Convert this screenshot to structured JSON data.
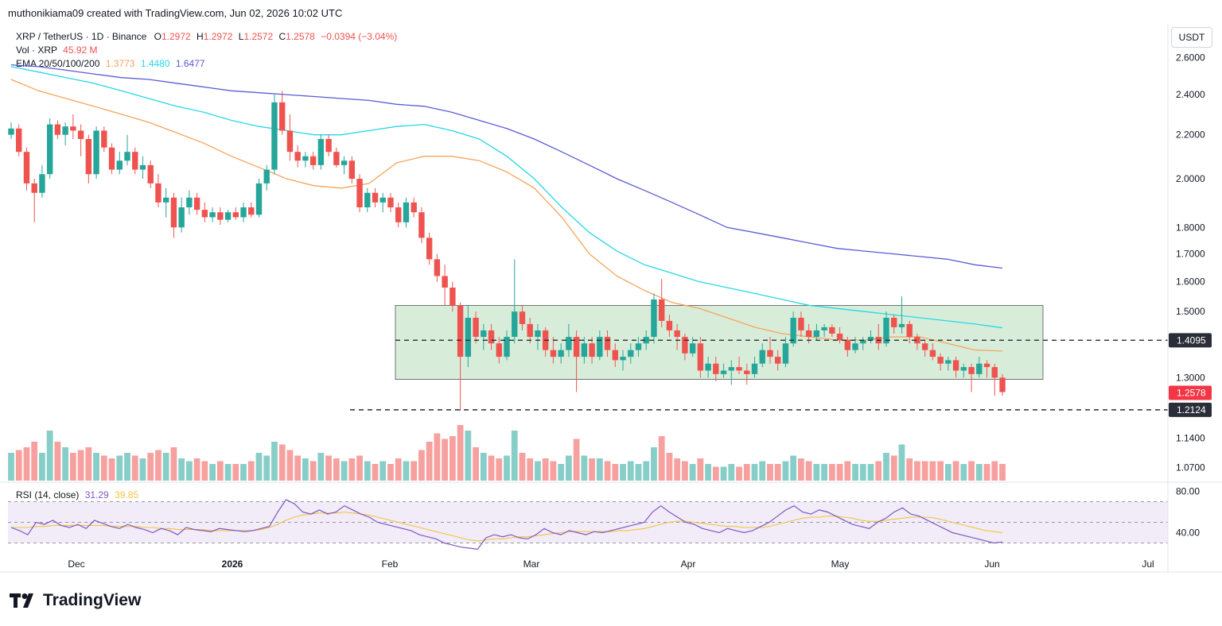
{
  "header": {
    "caption": "muthonikiama09 created with TradingView.com, Jun 02, 2026 10:02 UTC"
  },
  "legend": {
    "symbol": "XRP / TetherUS · 1D · Binance",
    "o_label": "O",
    "o_value": "1.2972",
    "h_label": "H",
    "h_value": "1.2972",
    "l_label": "L",
    "l_value": "1.2572",
    "c_label": "C",
    "c_value": "1.2578",
    "change": "−0.0394 (−3.04%)",
    "vol_label": "Vol · XRP",
    "vol_value": "45.92 M",
    "ema_label": "EMA 20/50/100/200",
    "ema_values": [
      "1.3773",
      "1.4480",
      "1.6477"
    ]
  },
  "currency_button": "USDT",
  "rsi_legend": {
    "label": "RSI (14, close)",
    "value": "31.29",
    "ma_value": "39.85"
  },
  "brand": {
    "name": "TradingView"
  },
  "colors": {
    "up": "#26a69a",
    "down": "#ef5350",
    "ema_orange": "#f7a35c",
    "ema_cyan": "#26d7e8",
    "ema_blue": "#5b5bd6",
    "range_box": "#c8e6c9",
    "rsi_line": "#7e57c2",
    "rsi_ma": "#f5c342",
    "rsi_band": "#ede7f6"
  },
  "chart_data": {
    "type": "candlestick",
    "y_scale": "log",
    "ylim": [
      1.04,
      2.75
    ],
    "y_ticks": [
      "2.6000",
      "2.4000",
      "2.2000",
      "2.0000",
      "1.8000",
      "1.7000",
      "1.6000",
      "1.5000",
      "1.3000",
      "1.1400",
      "1.0700"
    ],
    "x_ticks": [
      "Dec",
      "2026",
      "Feb",
      "Mar",
      "Apr",
      "May",
      "Jun",
      "Jul"
    ],
    "candles_ohlc": [
      [
        2.2,
        2.26,
        2.18,
        2.23
      ],
      [
        2.23,
        2.25,
        2.1,
        2.12
      ],
      [
        2.12,
        2.14,
        1.95,
        1.98
      ],
      [
        1.98,
        2.0,
        1.82,
        1.94
      ],
      [
        1.94,
        2.06,
        1.92,
        2.02
      ],
      [
        2.02,
        2.28,
        2.0,
        2.25
      ],
      [
        2.25,
        2.27,
        2.18,
        2.2
      ],
      [
        2.2,
        2.26,
        2.15,
        2.24
      ],
      [
        2.24,
        2.3,
        2.18,
        2.22
      ],
      [
        2.22,
        2.25,
        2.1,
        2.18
      ],
      [
        2.18,
        2.2,
        1.98,
        2.02
      ],
      [
        2.02,
        2.24,
        2.0,
        2.22
      ],
      [
        2.22,
        2.24,
        2.12,
        2.14
      ],
      [
        2.14,
        2.16,
        2.02,
        2.04
      ],
      [
        2.04,
        2.12,
        2.02,
        2.08
      ],
      [
        2.08,
        2.2,
        2.06,
        2.12
      ],
      [
        2.12,
        2.14,
        2.02,
        2.04
      ],
      [
        2.04,
        2.1,
        2.0,
        2.06
      ],
      [
        2.06,
        2.08,
        1.96,
        1.98
      ],
      [
        1.98,
        2.02,
        1.88,
        1.9
      ],
      [
        1.9,
        1.96,
        1.84,
        1.92
      ],
      [
        1.92,
        1.94,
        1.76,
        1.8
      ],
      [
        1.8,
        1.92,
        1.78,
        1.88
      ],
      [
        1.88,
        1.95,
        1.85,
        1.92
      ],
      [
        1.92,
        1.94,
        1.85,
        1.87
      ],
      [
        1.87,
        1.9,
        1.82,
        1.84
      ],
      [
        1.84,
        1.88,
        1.82,
        1.86
      ],
      [
        1.86,
        1.88,
        1.81,
        1.83
      ],
      [
        1.83,
        1.87,
        1.82,
        1.86
      ],
      [
        1.86,
        1.88,
        1.83,
        1.84
      ],
      [
        1.84,
        1.9,
        1.82,
        1.88
      ],
      [
        1.88,
        1.9,
        1.84,
        1.85
      ],
      [
        1.85,
        2.0,
        1.84,
        1.98
      ],
      [
        1.98,
        2.06,
        1.95,
        2.04
      ],
      [
        2.04,
        2.4,
        2.02,
        2.36
      ],
      [
        2.36,
        2.42,
        2.2,
        2.22
      ],
      [
        2.22,
        2.3,
        2.08,
        2.12
      ],
      [
        2.12,
        2.15,
        2.05,
        2.08
      ],
      [
        2.08,
        2.12,
        2.05,
        2.1
      ],
      [
        2.1,
        2.12,
        2.04,
        2.06
      ],
      [
        2.06,
        2.2,
        2.04,
        2.18
      ],
      [
        2.18,
        2.2,
        2.1,
        2.12
      ],
      [
        2.12,
        2.14,
        2.05,
        2.06
      ],
      [
        2.06,
        2.1,
        2.02,
        2.08
      ],
      [
        2.08,
        2.1,
        1.98,
        2.0
      ],
      [
        2.0,
        2.02,
        1.86,
        1.88
      ],
      [
        1.88,
        1.96,
        1.86,
        1.94
      ],
      [
        1.94,
        1.96,
        1.88,
        1.9
      ],
      [
        1.9,
        1.94,
        1.86,
        1.92
      ],
      [
        1.92,
        1.94,
        1.86,
        1.88
      ],
      [
        1.88,
        1.9,
        1.8,
        1.82
      ],
      [
        1.82,
        1.92,
        1.8,
        1.9
      ],
      [
        1.9,
        1.92,
        1.84,
        1.86
      ],
      [
        1.86,
        1.88,
        1.74,
        1.76
      ],
      [
        1.76,
        1.78,
        1.66,
        1.68
      ],
      [
        1.68,
        1.7,
        1.6,
        1.62
      ],
      [
        1.62,
        1.66,
        1.52,
        1.58
      ],
      [
        1.58,
        1.6,
        1.5,
        1.52
      ],
      [
        1.52,
        1.53,
        1.21,
        1.36
      ],
      [
        1.36,
        1.52,
        1.33,
        1.48
      ],
      [
        1.48,
        1.5,
        1.4,
        1.42
      ],
      [
        1.42,
        1.46,
        1.38,
        1.44
      ],
      [
        1.44,
        1.46,
        1.38,
        1.4
      ],
      [
        1.4,
        1.42,
        1.34,
        1.36
      ],
      [
        1.36,
        1.44,
        1.35,
        1.42
      ],
      [
        1.42,
        1.68,
        1.4,
        1.5
      ],
      [
        1.5,
        1.52,
        1.44,
        1.46
      ],
      [
        1.46,
        1.48,
        1.4,
        1.42
      ],
      [
        1.42,
        1.46,
        1.38,
        1.44
      ],
      [
        1.44,
        1.45,
        1.36,
        1.38
      ],
      [
        1.38,
        1.42,
        1.34,
        1.36
      ],
      [
        1.36,
        1.4,
        1.34,
        1.38
      ],
      [
        1.38,
        1.46,
        1.36,
        1.42
      ],
      [
        1.42,
        1.44,
        1.26,
        1.36
      ],
      [
        1.36,
        1.42,
        1.34,
        1.4
      ],
      [
        1.4,
        1.42,
        1.34,
        1.36
      ],
      [
        1.36,
        1.44,
        1.35,
        1.42
      ],
      [
        1.42,
        1.44,
        1.36,
        1.38
      ],
      [
        1.38,
        1.4,
        1.33,
        1.35
      ],
      [
        1.35,
        1.38,
        1.32,
        1.36
      ],
      [
        1.36,
        1.4,
        1.34,
        1.38
      ],
      [
        1.38,
        1.42,
        1.36,
        1.4
      ],
      [
        1.4,
        1.44,
        1.38,
        1.42
      ],
      [
        1.42,
        1.56,
        1.4,
        1.54
      ],
      [
        1.54,
        1.61,
        1.45,
        1.47
      ],
      [
        1.47,
        1.49,
        1.42,
        1.44
      ],
      [
        1.44,
        1.46,
        1.38,
        1.42
      ],
      [
        1.42,
        1.43,
        1.35,
        1.37
      ],
      [
        1.37,
        1.42,
        1.36,
        1.4
      ],
      [
        1.4,
        1.42,
        1.3,
        1.32
      ],
      [
        1.32,
        1.36,
        1.3,
        1.34
      ],
      [
        1.34,
        1.36,
        1.29,
        1.31
      ],
      [
        1.31,
        1.34,
        1.3,
        1.32
      ],
      [
        1.32,
        1.35,
        1.28,
        1.33
      ],
      [
        1.33,
        1.36,
        1.31,
        1.32
      ],
      [
        1.32,
        1.34,
        1.28,
        1.31
      ],
      [
        1.31,
        1.36,
        1.3,
        1.34
      ],
      [
        1.34,
        1.4,
        1.33,
        1.38
      ],
      [
        1.38,
        1.42,
        1.34,
        1.36
      ],
      [
        1.36,
        1.38,
        1.32,
        1.34
      ],
      [
        1.34,
        1.42,
        1.33,
        1.4
      ],
      [
        1.4,
        1.5,
        1.39,
        1.48
      ],
      [
        1.48,
        1.5,
        1.42,
        1.44
      ],
      [
        1.44,
        1.46,
        1.4,
        1.42
      ],
      [
        1.42,
        1.46,
        1.41,
        1.44
      ],
      [
        1.44,
        1.46,
        1.42,
        1.45
      ],
      [
        1.45,
        1.46,
        1.42,
        1.43
      ],
      [
        1.43,
        1.45,
        1.4,
        1.41
      ],
      [
        1.41,
        1.42,
        1.36,
        1.38
      ],
      [
        1.38,
        1.42,
        1.37,
        1.4
      ],
      [
        1.4,
        1.42,
        1.38,
        1.41
      ],
      [
        1.41,
        1.44,
        1.4,
        1.42
      ],
      [
        1.42,
        1.46,
        1.38,
        1.4
      ],
      [
        1.4,
        1.5,
        1.39,
        1.48
      ],
      [
        1.48,
        1.49,
        1.43,
        1.45
      ],
      [
        1.45,
        1.55,
        1.43,
        1.46
      ],
      [
        1.46,
        1.47,
        1.4,
        1.42
      ],
      [
        1.42,
        1.43,
        1.38,
        1.4
      ],
      [
        1.4,
        1.41,
        1.36,
        1.38
      ],
      [
        1.38,
        1.4,
        1.35,
        1.36
      ],
      [
        1.36,
        1.37,
        1.32,
        1.34
      ],
      [
        1.34,
        1.36,
        1.32,
        1.35
      ],
      [
        1.35,
        1.36,
        1.3,
        1.32
      ],
      [
        1.32,
        1.34,
        1.3,
        1.33
      ],
      [
        1.33,
        1.34,
        1.26,
        1.31
      ],
      [
        1.31,
        1.36,
        1.3,
        1.34
      ],
      [
        1.34,
        1.35,
        1.3,
        1.33
      ],
      [
        1.33,
        1.34,
        1.25,
        1.3
      ],
      [
        1.3,
        1.31,
        1.25,
        1.26
      ]
    ],
    "volume_relative": [
      0.5,
      0.55,
      0.6,
      0.7,
      0.5,
      0.9,
      0.7,
      0.6,
      0.5,
      0.55,
      0.6,
      0.5,
      0.45,
      0.4,
      0.45,
      0.5,
      0.45,
      0.4,
      0.5,
      0.55,
      0.5,
      0.6,
      0.4,
      0.35,
      0.4,
      0.35,
      0.3,
      0.35,
      0.3,
      0.3,
      0.3,
      0.35,
      0.5,
      0.45,
      0.7,
      0.65,
      0.55,
      0.45,
      0.4,
      0.35,
      0.5,
      0.45,
      0.4,
      0.35,
      0.4,
      0.45,
      0.35,
      0.3,
      0.35,
      0.3,
      0.4,
      0.35,
      0.35,
      0.55,
      0.7,
      0.85,
      0.75,
      0.8,
      1.0,
      0.9,
      0.6,
      0.5,
      0.45,
      0.4,
      0.45,
      0.9,
      0.5,
      0.4,
      0.35,
      0.4,
      0.35,
      0.3,
      0.45,
      0.75,
      0.45,
      0.4,
      0.4,
      0.35,
      0.3,
      0.3,
      0.35,
      0.3,
      0.35,
      0.6,
      0.8,
      0.5,
      0.4,
      0.35,
      0.3,
      0.4,
      0.3,
      0.25,
      0.25,
      0.3,
      0.25,
      0.3,
      0.3,
      0.35,
      0.3,
      0.3,
      0.35,
      0.45,
      0.4,
      0.35,
      0.3,
      0.3,
      0.3,
      0.3,
      0.35,
      0.3,
      0.3,
      0.3,
      0.35,
      0.5,
      0.45,
      0.65,
      0.4,
      0.35,
      0.35,
      0.35,
      0.35,
      0.3,
      0.35,
      0.3,
      0.35,
      0.3,
      0.3,
      0.35,
      0.3
    ],
    "ema_50": [
      2.48,
      2.42,
      2.38,
      2.34,
      2.3,
      2.26,
      2.21,
      2.16,
      2.1,
      2.05,
      2.0,
      1.97,
      1.96,
      1.98,
      2.07,
      2.1,
      2.1,
      2.08,
      2.03,
      1.96,
      1.84,
      1.7,
      1.62,
      1.57,
      1.53,
      1.51,
      1.48,
      1.45,
      1.43,
      1.42,
      1.41,
      1.41,
      1.42,
      1.42,
      1.4,
      1.38,
      1.377
    ],
    "ema_100": [
      2.55,
      2.52,
      2.49,
      2.46,
      2.42,
      2.38,
      2.34,
      2.31,
      2.27,
      2.24,
      2.22,
      2.2,
      2.2,
      2.22,
      2.24,
      2.25,
      2.22,
      2.18,
      2.1,
      2.0,
      1.88,
      1.78,
      1.71,
      1.66,
      1.63,
      1.6,
      1.58,
      1.56,
      1.54,
      1.52,
      1.51,
      1.5,
      1.49,
      1.48,
      1.47,
      1.46,
      1.448
    ],
    "ema_200": [
      2.56,
      2.55,
      2.53,
      2.51,
      2.49,
      2.48,
      2.46,
      2.44,
      2.42,
      2.41,
      2.4,
      2.39,
      2.38,
      2.37,
      2.35,
      2.34,
      2.31,
      2.27,
      2.23,
      2.18,
      2.12,
      2.06,
      2.0,
      1.95,
      1.9,
      1.85,
      1.8,
      1.78,
      1.76,
      1.74,
      1.72,
      1.71,
      1.7,
      1.69,
      1.68,
      1.66,
      1.648
    ],
    "levels": {
      "range_top": 1.52,
      "range_bottom": 1.295,
      "resistance": 1.4095,
      "resistance_label": "1.4095",
      "support": 1.2124,
      "support_label": "1.2124",
      "last_price": 1.2578,
      "last_price_label": "1.2578"
    },
    "rsi": {
      "ylim": [
        25,
        85
      ],
      "y_ticks": [
        "80.00",
        "40.00"
      ],
      "band": [
        30,
        70
      ],
      "mid": 50,
      "values": [
        45,
        42,
        38,
        50,
        48,
        52,
        47,
        45,
        48,
        44,
        52,
        49,
        46,
        44,
        48,
        45,
        43,
        40,
        44,
        42,
        38,
        45,
        43,
        42,
        41,
        44,
        43,
        42,
        41,
        42,
        44,
        46,
        60,
        72,
        68,
        60,
        58,
        62,
        58,
        60,
        66,
        62,
        58,
        55,
        50,
        48,
        46,
        44,
        42,
        38,
        36,
        34,
        30,
        28,
        26,
        25,
        24,
        35,
        38,
        36,
        38,
        35,
        34,
        38,
        44,
        40,
        38,
        42,
        40,
        38,
        41,
        40,
        42,
        44,
        46,
        48,
        50,
        60,
        66,
        60,
        55,
        50,
        48,
        44,
        42,
        40,
        44,
        42,
        40,
        42,
        46,
        50,
        56,
        62,
        66,
        60,
        58,
        62,
        60,
        56,
        52,
        48,
        46,
        44,
        50,
        54,
        60,
        64,
        58,
        56,
        52,
        48,
        44,
        40,
        38,
        36,
        34,
        32,
        30,
        31
      ],
      "ma": [
        45,
        45,
        45,
        46,
        46,
        47,
        47,
        47,
        47,
        47,
        47,
        47,
        46,
        46,
        46,
        46,
        45,
        45,
        44,
        44,
        43,
        43,
        43,
        43,
        42,
        42,
        42,
        42,
        42,
        42,
        43,
        45,
        48,
        52,
        55,
        57,
        58,
        59,
        59,
        59,
        60,
        59,
        58,
        57,
        55,
        53,
        51,
        49,
        47,
        45,
        43,
        41,
        39,
        37,
        35,
        33,
        32,
        33,
        34,
        34,
        35,
        36,
        36,
        37,
        38,
        39,
        40,
        41,
        41,
        41,
        41,
        41,
        41,
        42,
        42,
        43,
        44,
        46,
        48,
        50,
        51,
        51,
        50,
        49,
        48,
        47,
        46,
        46,
        45,
        45,
        45,
        46,
        48,
        50,
        52,
        54,
        55,
        55,
        56,
        56,
        55,
        54,
        52,
        51,
        51,
        52,
        53,
        54,
        55,
        55,
        55,
        54,
        52,
        50,
        48,
        46,
        44,
        42,
        41,
        39.85
      ]
    }
  }
}
